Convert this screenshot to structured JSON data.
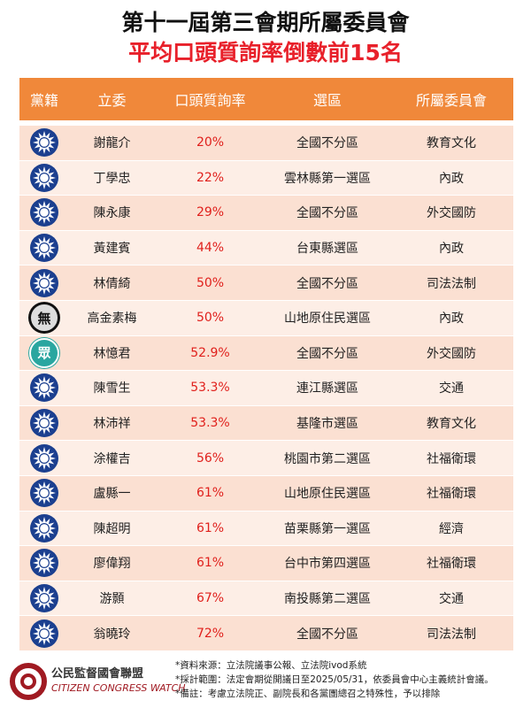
{
  "header": {
    "title": "第十一屆第三會期所屬委員會",
    "subtitle": "平均口頭質詢率倒數前15名"
  },
  "table": {
    "columns": [
      "黨籍",
      "立委",
      "口頭質詢率",
      "選區",
      "所屬委員會"
    ],
    "rows": [
      {
        "name": "謝龍介",
        "rate": "20%",
        "district": "全國不分區",
        "committee": "教育文化"
      },
      {
        "name": "丁學忠",
        "rate": "22%",
        "district": "雲林縣第一選區",
        "committee": "內政"
      },
      {
        "name": "陳永康",
        "rate": "29%",
        "district": "全國不分區",
        "committee": "外交國防"
      },
      {
        "name": "黃建賓",
        "rate": "44%",
        "district": "台東縣選區",
        "committee": "內政"
      },
      {
        "name": "林倩綺",
        "rate": "50%",
        "district": "全國不分區",
        "committee": "司法法制"
      },
      {
        "party": "無",
        "name": "高金素梅",
        "rate": "50%",
        "district": "山地原住民選區",
        "committee": "內政"
      },
      {
        "party": "眾",
        "name": "林憶君",
        "rate": "52.9%",
        "district": "全國不分區",
        "committee": "外交國防"
      },
      {
        "name": "陳雪生",
        "rate": "53.3%",
        "district": "連江縣選區",
        "committee": "交通"
      },
      {
        "name": "林沛祥",
        "rate": "53.3%",
        "district": "基隆市選區",
        "committee": "教育文化"
      },
      {
        "name": "涂權吉",
        "rate": "56%",
        "district": "桃園市第二選區",
        "committee": "社福衛環"
      },
      {
        "name": "盧縣一",
        "rate": "61%",
        "district": "山地原住民選區",
        "committee": "社福衛環"
      },
      {
        "name": "陳超明",
        "rate": "61%",
        "district": "苗栗縣第一選區",
        "committee": "經濟"
      },
      {
        "name": "廖偉翔",
        "rate": "61%",
        "district": "台中市第四選區",
        "committee": "社福衛環"
      },
      {
        "name": "游顥",
        "rate": "67%",
        "district": "南投縣第二選區",
        "committee": "交通"
      },
      {
        "name": "翁曉玲",
        "rate": "72%",
        "district": "全國不分區",
        "committee": "司法法制"
      }
    ]
  },
  "footer": {
    "org": "公民監督國會聯盟",
    "org_en": "CITIZEN CONGRESS WATCH",
    "notes": [
      "*資料來源：立法院議事公報、立法院ivod系統",
      "*採計範圍：法定會期從開議日至2025/05/31，依委員會中心主義統計會議。",
      "*備註：考慮立法院正、副院長和各黨團總召之特殊性，予以排除"
    ]
  }
}
